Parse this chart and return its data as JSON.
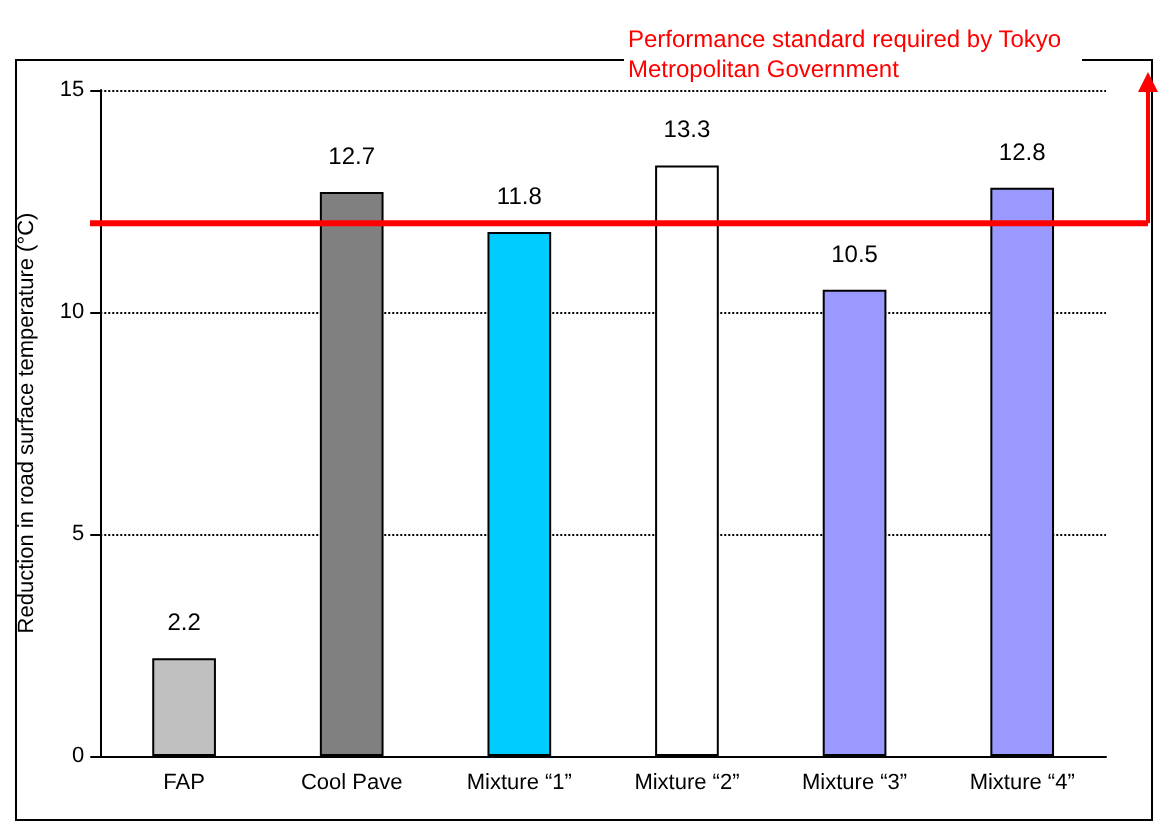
{
  "chart_data": {
    "type": "bar",
    "ylabel": "Reduction in road surface temperature (°C)",
    "categories": [
      "FAP",
      "Cool Pave",
      "Mixture “1”",
      "Mixture “2”",
      "Mixture “3”",
      "Mixture “4”"
    ],
    "values": [
      2.2,
      12.7,
      11.8,
      13.3,
      10.5,
      12.8
    ],
    "colors": [
      "#c0c0c0",
      "#808080",
      "#00ccff",
      "#ffffff",
      "#9999ff",
      "#9999ff"
    ],
    "ylim": [
      0,
      15
    ],
    "yticks": [
      0,
      5,
      10,
      15
    ],
    "grid": "y",
    "data_labels": true,
    "ref_lines": [
      {
        "axis": "y",
        "value": 12,
        "label": "Performance standard required by Tokyo Metropolitan Government",
        "color": "#ff0000"
      }
    ]
  }
}
